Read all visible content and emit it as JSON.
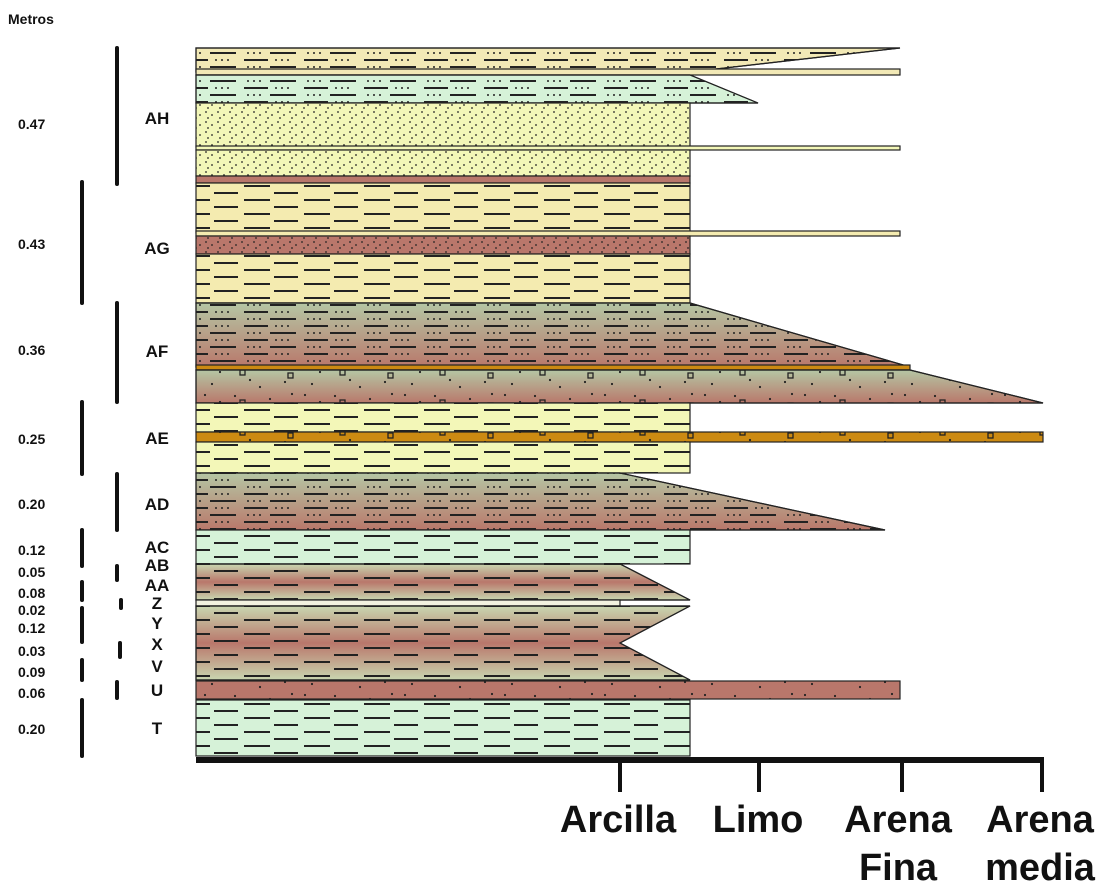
{
  "header": {
    "units_label": "Metros"
  },
  "units": [
    {
      "id": "AH",
      "thickness": "0.47"
    },
    {
      "id": "AG",
      "thickness": "0.43"
    },
    {
      "id": "AF",
      "thickness": "0.36"
    },
    {
      "id": "AE",
      "thickness": "0.25"
    },
    {
      "id": "AD",
      "thickness": "0.20"
    },
    {
      "id": "AC",
      "thickness": "0.12"
    },
    {
      "id": "AB",
      "thickness": "0.05"
    },
    {
      "id": "AA",
      "thickness": "0.08"
    },
    {
      "id": "Z",
      "thickness": "0.02"
    },
    {
      "id": "Y",
      "thickness": "0.12"
    },
    {
      "id": "X",
      "thickness": "0.03"
    },
    {
      "id": "V",
      "thickness": "0.09"
    },
    {
      "id": "U",
      "thickness": "0.06"
    },
    {
      "id": "T",
      "thickness": "0.20"
    }
  ],
  "grain_scale": [
    {
      "line1": "Arcilla",
      "line2": ""
    },
    {
      "line1": "Limo",
      "line2": ""
    },
    {
      "line1": "Arena",
      "line2": "Fina"
    },
    {
      "line1": "Arena",
      "line2": "media"
    }
  ],
  "colors": {
    "pale_green": "#d6f2d8",
    "pale_yellow": "#f4ebb0",
    "light_yellow": "#f3f7b8",
    "brown": "#b9776b",
    "orange": "#cc8a12",
    "olive_green": "#b8c8a0"
  }
}
